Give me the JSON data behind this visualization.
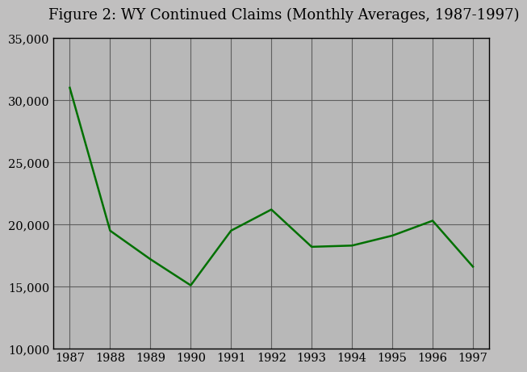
{
  "title": "Figure 2: WY Continued Claims (Monthly Averages, 1987-1997)",
  "x_values": [
    1987,
    1988,
    1989,
    1990,
    1991,
    1992,
    1993,
    1994,
    1995,
    1996,
    1997
  ],
  "y_values": [
    31000,
    19500,
    17200,
    15100,
    19500,
    21200,
    18200,
    18300,
    19100,
    20300,
    16600
  ],
  "line_color": "#007000",
  "background_color": "#c0bfbf",
  "plot_bg_color": "#b8b8b8",
  "ylim": [
    10000,
    35000
  ],
  "yticks": [
    10000,
    15000,
    20000,
    25000,
    30000,
    35000
  ],
  "xlim": [
    1986.6,
    1997.4
  ],
  "xticks": [
    1987,
    1988,
    1989,
    1990,
    1991,
    1992,
    1993,
    1994,
    1995,
    1996,
    1997
  ],
  "title_fontsize": 13,
  "tick_fontsize": 10.5,
  "line_width": 1.8
}
